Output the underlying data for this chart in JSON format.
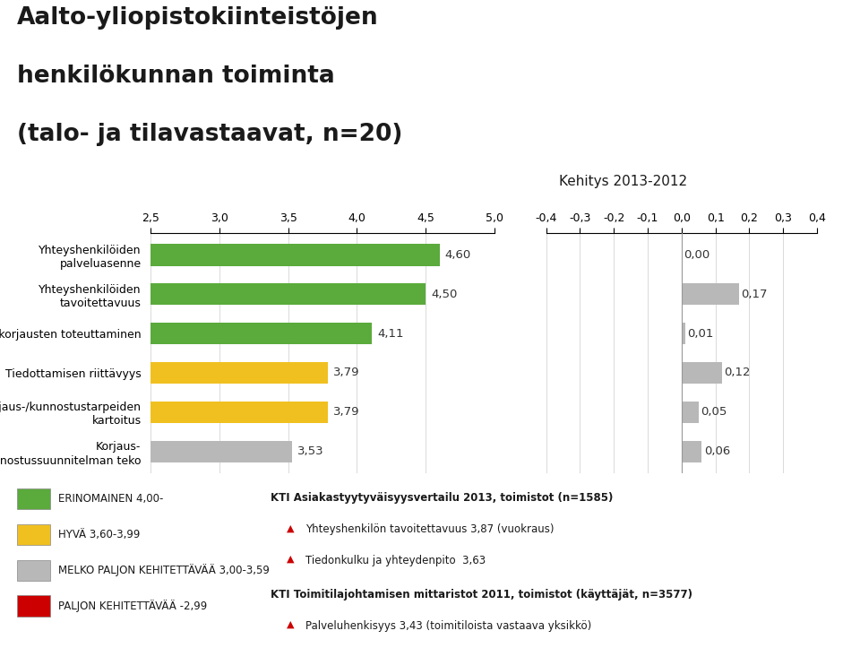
{
  "title_line1": "Aalto-yliopistokiinteistöjen",
  "title_line2": "henkilökunnan toiminta",
  "title_line3": "(talo- ja tilavastaavat, n=20)",
  "kehitys_title": "Kehitys 2013-2012",
  "categories": [
    "Yhteyshenkilöiden\npalveluasenne",
    "Yhteyshenkilöiden\ntavoitettavuus",
    "Pienkorjausten toteuttaminen",
    "Tiedottamisen riittävyys",
    "Korjaus-/kunnostustarpeiden\nkartoitus",
    "Korjaus-\n/kunnostussuunnitelman teko"
  ],
  "values": [
    4.6,
    4.5,
    4.11,
    3.79,
    3.79,
    3.53
  ],
  "bar_colors": [
    "#5aaa3c",
    "#5aaa3c",
    "#5aaa3c",
    "#f0c020",
    "#f0c020",
    "#b8b8b8"
  ],
  "kehitys_values": [
    0.0,
    0.17,
    0.01,
    0.12,
    0.05,
    0.06
  ],
  "xlim_left": [
    2.5,
    5.0
  ],
  "xlim_right": [
    -0.4,
    0.4
  ],
  "xticks_left": [
    2.5,
    3.0,
    3.5,
    4.0,
    4.5,
    5.0
  ],
  "xticks_right": [
    -0.4,
    -0.3,
    -0.2,
    -0.1,
    0.0,
    0.1,
    0.2,
    0.3,
    0.4
  ],
  "legend_items": [
    {
      "label": "ERINOMAINEN 4,00-",
      "color": "#5aaa3c"
    },
    {
      "label": "HYVÄ 3,60-3,99",
      "color": "#f0c020"
    },
    {
      "label": "MELKO PALJON KEHITETTÄVÄÄ 3,00-3,59",
      "color": "#b8b8b8"
    },
    {
      "label": "PALJON KEHITETTÄVÄÄ -2,99",
      "color": "#cc0000"
    }
  ],
  "note_bold1": "KTI Asiakastyytyväisyysvertailu 2013, toimistot (n=1585)",
  "note1a": "Yhteyshenkilön tavoitettavuus 3,87 (vuokraus)",
  "note1b": "Tiedonkulku ja yhteydenpito  3,63",
  "note_bold2": "KTI Toimitilajohtamisen mittaristot 2011, toimistot (käyttäjät, n=3577)",
  "note2a": "Palveluhenkisyys 3,43 (toimitiloista vastaava yksikkö)",
  "background_color": "#ffffff",
  "bar_height": 0.55
}
